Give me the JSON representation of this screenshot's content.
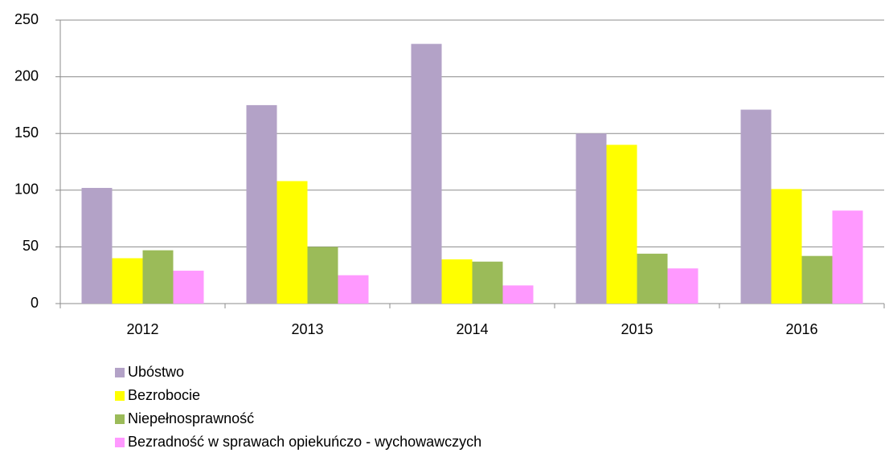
{
  "chart_data": {
    "type": "bar",
    "categories": [
      "2012",
      "2013",
      "2014",
      "2015",
      "2016"
    ],
    "series": [
      {
        "name": "Ubóstwo",
        "color": "#b3a2c7",
        "values": [
          102,
          175,
          229,
          150,
          171
        ]
      },
      {
        "name": "Bezrobocie",
        "color": "#ffff00",
        "values": [
          40,
          108,
          39,
          140,
          101
        ]
      },
      {
        "name": "Niepełnosprawność",
        "color": "#9bbb59",
        "values": [
          47,
          50,
          37,
          44,
          42
        ]
      },
      {
        "name": "Bezradność w sprawach opiekuńczo - wychowawczych",
        "color": "#ff99ff",
        "values": [
          29,
          25,
          16,
          31,
          82
        ]
      }
    ],
    "ylim": [
      0,
      250
    ],
    "yticks": [
      0,
      50,
      100,
      150,
      200,
      250
    ],
    "grid": true,
    "legend": "bottom"
  }
}
